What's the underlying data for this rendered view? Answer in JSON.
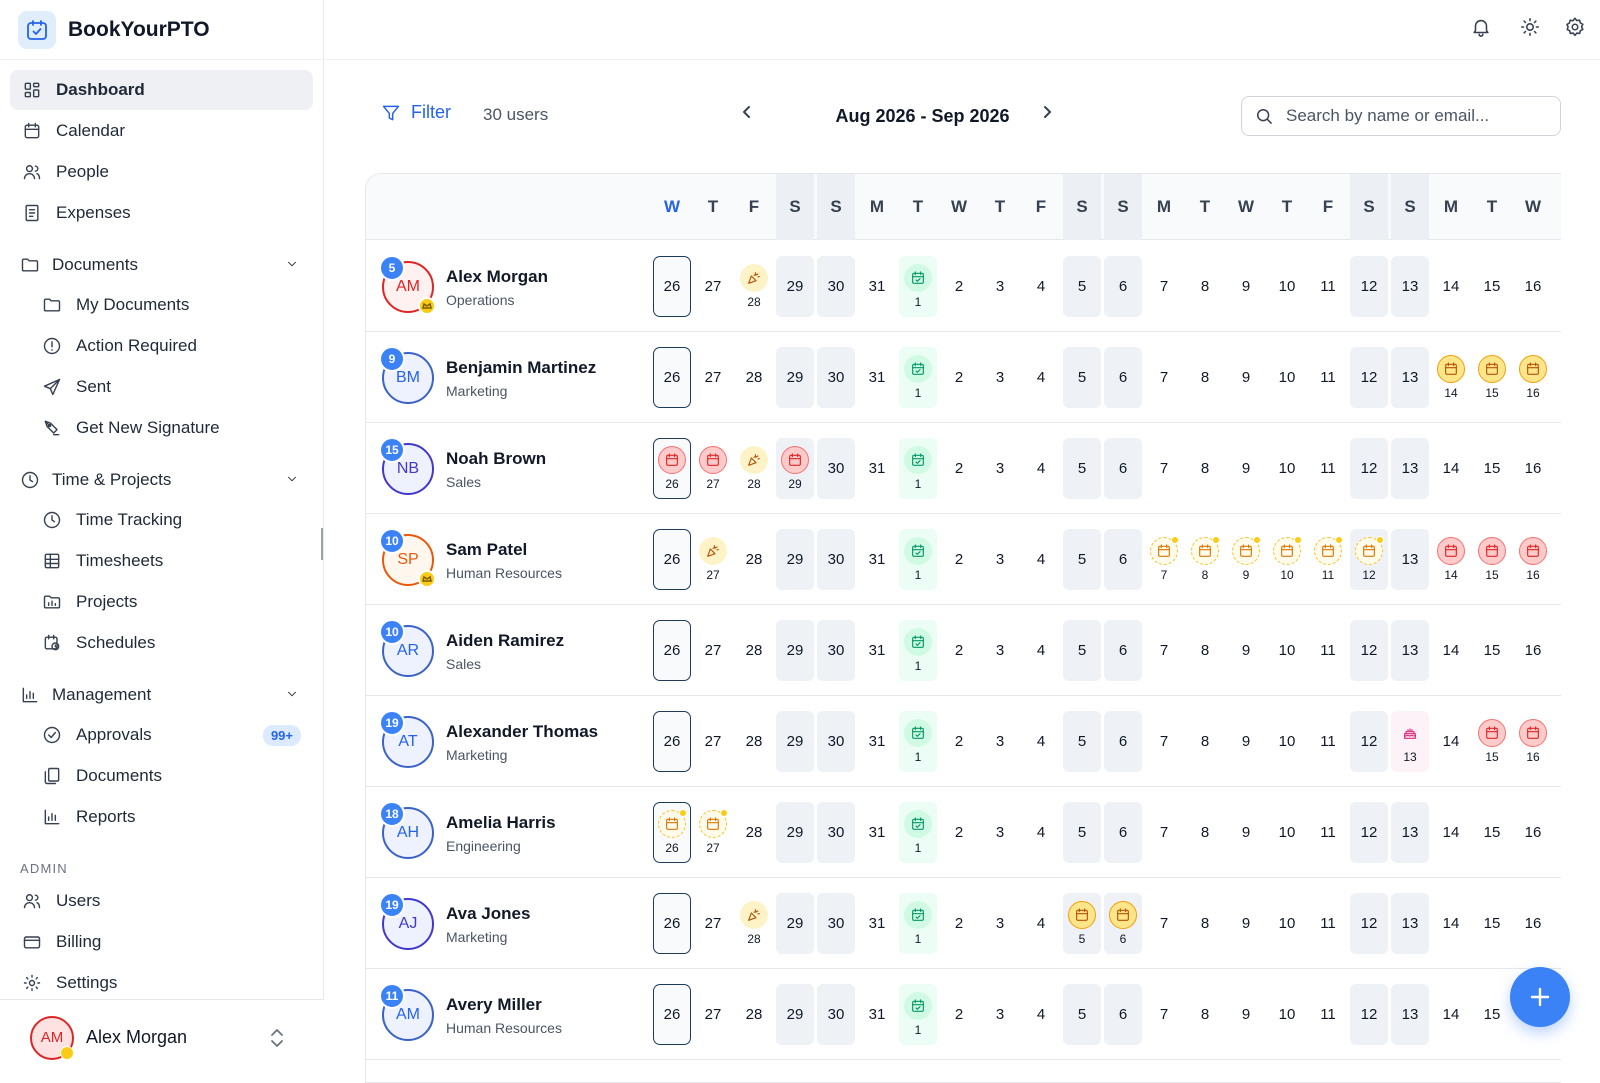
{
  "app": {
    "name": "BookYourPTO"
  },
  "sidebar": {
    "top_items": [
      {
        "label": "Dashboard",
        "icon": "dashboard-icon",
        "active": true
      },
      {
        "label": "Calendar",
        "icon": "calendar-icon"
      },
      {
        "label": "People",
        "icon": "people-icon"
      },
      {
        "label": "Expenses",
        "icon": "receipt-icon"
      }
    ],
    "documents": {
      "label": "Documents",
      "items": [
        {
          "label": "My Documents",
          "icon": "folder-icon"
        },
        {
          "label": "Action Required",
          "icon": "alert-circle-icon"
        },
        {
          "label": "Sent",
          "icon": "send-icon"
        },
        {
          "label": "Get New Signature",
          "icon": "signature-icon"
        }
      ]
    },
    "time_projects": {
      "label": "Time & Projects",
      "items": [
        {
          "label": "Time Tracking",
          "icon": "clock-icon"
        },
        {
          "label": "Timesheets",
          "icon": "table-icon"
        },
        {
          "label": "Projects",
          "icon": "projects-icon"
        },
        {
          "label": "Schedules",
          "icon": "schedule-icon"
        }
      ]
    },
    "management": {
      "label": "Management",
      "items": [
        {
          "label": "Approvals",
          "icon": "check-circle-icon",
          "badge": "99+"
        },
        {
          "label": "Documents",
          "icon": "copy-icon"
        },
        {
          "label": "Reports",
          "icon": "bar-chart-icon"
        }
      ]
    },
    "admin": {
      "label": "ADMIN",
      "items": [
        {
          "label": "Users",
          "icon": "users-icon"
        },
        {
          "label": "Billing",
          "icon": "credit-card-icon"
        },
        {
          "label": "Settings",
          "icon": "gear-icon"
        }
      ]
    },
    "user": {
      "initials": "AM",
      "name": "Alex Morgan"
    }
  },
  "toolbar": {
    "filter_label": "Filter",
    "users_count": "30 users",
    "range": "Aug 2026 - Sep 2026",
    "search_placeholder": "Search by name or email..."
  },
  "calendar": {
    "header_letters": [
      "W",
      "T",
      "F",
      "S",
      "S",
      "M",
      "T",
      "W",
      "T",
      "F",
      "S",
      "S",
      "M",
      "T",
      "W",
      "T",
      "F",
      "S",
      "S",
      "M",
      "T",
      "W"
    ],
    "weekend_index": [
      3,
      4,
      10,
      11,
      17,
      18
    ],
    "day_numbers": [
      "26",
      "27",
      "28",
      "29",
      "30",
      "31",
      "1",
      "2",
      "3",
      "4",
      "5",
      "6",
      "7",
      "8",
      "9",
      "10",
      "11",
      "12",
      "13",
      "14",
      "15",
      "16"
    ],
    "rows": [
      {
        "initials": "AM",
        "badge": "5",
        "name": "Alex Morgan",
        "dept": "Operations",
        "color": "red",
        "crown": true,
        "events": {
          "2": "party",
          "6": "holiday"
        }
      },
      {
        "initials": "BM",
        "badge": "9",
        "name": "Benjamin Martinez",
        "dept": "Marketing",
        "color": "blue",
        "events": {
          "6": "holiday",
          "19": "pto-yellow",
          "20": "pto-yellow",
          "21": "pto-yellow"
        }
      },
      {
        "initials": "NB",
        "badge": "15",
        "name": "Noah Brown",
        "dept": "Sales",
        "color": "indigo",
        "events": {
          "0": "pto-red",
          "1": "pto-red",
          "2": "party",
          "3": "pto-red",
          "6": "holiday"
        }
      },
      {
        "initials": "SP",
        "badge": "10",
        "name": "Sam Patel",
        "dept": "Human Resources",
        "color": "orange",
        "crown": true,
        "events": {
          "1": "party",
          "6": "holiday",
          "12": "pto-pending",
          "13": "pto-pending",
          "14": "pto-pending",
          "15": "pto-pending",
          "16": "pto-pending",
          "17": "pto-pending",
          "19": "pto-red",
          "20": "pto-red",
          "21": "pto-red"
        }
      },
      {
        "initials": "AR",
        "badge": "10",
        "name": "Aiden Ramirez",
        "dept": "Sales",
        "color": "blue",
        "events": {
          "6": "holiday"
        }
      },
      {
        "initials": "AT",
        "badge": "19",
        "name": "Alexander Thomas",
        "dept": "Marketing",
        "color": "blue",
        "events": {
          "6": "holiday",
          "18": "bday",
          "20": "pto-red",
          "21": "pto-red"
        }
      },
      {
        "initials": "AH",
        "badge": "18",
        "name": "Amelia Harris",
        "dept": "Engineering",
        "color": "blue",
        "events": {
          "0": "pto-pending",
          "1": "pto-pending",
          "6": "holiday"
        }
      },
      {
        "initials": "AJ",
        "badge": "19",
        "name": "Ava Jones",
        "dept": "Marketing",
        "color": "indigo",
        "events": {
          "2": "party",
          "6": "holiday",
          "10": "pto-yellow",
          "11": "pto-yellow"
        }
      },
      {
        "initials": "AM",
        "badge": "11",
        "name": "Avery Miller",
        "dept": "Human Resources",
        "color": "blue",
        "events": {
          "6": "holiday"
        }
      }
    ]
  }
}
